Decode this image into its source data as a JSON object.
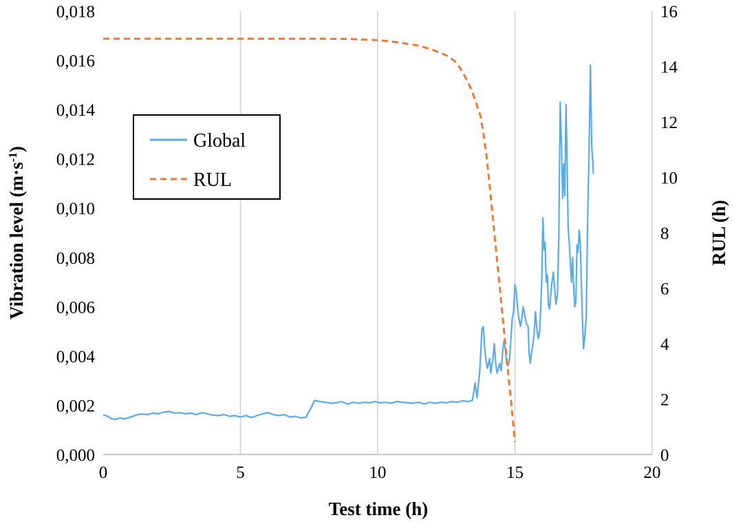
{
  "chart_data": {
    "type": "line",
    "xlabel": "Test time (h)",
    "ylabel": "Vibration level (m·s",
    "ylabel_sup": "-1",
    "ylabel_close": ")",
    "y2label": "RUL (h)",
    "xlim": [
      0,
      20
    ],
    "ylim": [
      0,
      0.018
    ],
    "y2lim": [
      0,
      16
    ],
    "x_ticks": [
      "0",
      "5",
      "10",
      "15",
      "20"
    ],
    "y_ticks": [
      "0,000",
      "0,002",
      "0,004",
      "0,006",
      "0,008",
      "0,010",
      "0,012",
      "0,014",
      "0,016",
      "0,018"
    ],
    "y2_ticks": [
      "0",
      "2",
      "4",
      "6",
      "8",
      "10",
      "12",
      "14",
      "16"
    ],
    "grid": "vertical",
    "legend_position": "upper-left",
    "series": [
      {
        "name": "Global",
        "axis": "left",
        "color": "#5aace6",
        "style": "solid",
        "points": [
          [
            0,
            0.0016
          ],
          [
            0.1,
            0.00158
          ],
          [
            0.2,
            0.00152
          ],
          [
            0.3,
            0.00145
          ],
          [
            0.45,
            0.00142
          ],
          [
            0.6,
            0.00148
          ],
          [
            0.8,
            0.00145
          ],
          [
            1.0,
            0.00152
          ],
          [
            1.2,
            0.0016
          ],
          [
            1.4,
            0.00165
          ],
          [
            1.6,
            0.00162
          ],
          [
            1.8,
            0.00168
          ],
          [
            2.0,
            0.00165
          ],
          [
            2.2,
            0.00172
          ],
          [
            2.4,
            0.00175
          ],
          [
            2.6,
            0.00168
          ],
          [
            2.8,
            0.0017
          ],
          [
            3.0,
            0.00165
          ],
          [
            3.2,
            0.00168
          ],
          [
            3.4,
            0.00162
          ],
          [
            3.6,
            0.0017
          ],
          [
            3.8,
            0.00165
          ],
          [
            4.0,
            0.0016
          ],
          [
            4.2,
            0.00158
          ],
          [
            4.4,
            0.00162
          ],
          [
            4.6,
            0.00155
          ],
          [
            4.8,
            0.00158
          ],
          [
            5.0,
            0.00152
          ],
          [
            5.2,
            0.00158
          ],
          [
            5.4,
            0.0015
          ],
          [
            5.6,
            0.00158
          ],
          [
            5.8,
            0.00165
          ],
          [
            6.0,
            0.0017
          ],
          [
            6.2,
            0.00162
          ],
          [
            6.4,
            0.00158
          ],
          [
            6.6,
            0.00162
          ],
          [
            6.8,
            0.00152
          ],
          [
            7.0,
            0.00155
          ],
          [
            7.2,
            0.00148
          ],
          [
            7.4,
            0.00152
          ],
          [
            7.45,
            0.00165
          ],
          [
            7.6,
            0.00195
          ],
          [
            7.7,
            0.0022
          ],
          [
            7.9,
            0.00215
          ],
          [
            8.1,
            0.00212
          ],
          [
            8.3,
            0.00208
          ],
          [
            8.5,
            0.0021
          ],
          [
            8.7,
            0.00215
          ],
          [
            8.9,
            0.00205
          ],
          [
            9.1,
            0.00212
          ],
          [
            9.3,
            0.00208
          ],
          [
            9.5,
            0.00212
          ],
          [
            9.7,
            0.0021
          ],
          [
            9.9,
            0.00215
          ],
          [
            10.1,
            0.0021
          ],
          [
            10.3,
            0.00212
          ],
          [
            10.5,
            0.00208
          ],
          [
            10.7,
            0.00215
          ],
          [
            10.9,
            0.00212
          ],
          [
            11.1,
            0.0021
          ],
          [
            11.3,
            0.00208
          ],
          [
            11.5,
            0.00212
          ],
          [
            11.7,
            0.00205
          ],
          [
            11.9,
            0.00212
          ],
          [
            12.1,
            0.00208
          ],
          [
            12.3,
            0.00212
          ],
          [
            12.5,
            0.0021
          ],
          [
            12.7,
            0.00215
          ],
          [
            12.9,
            0.00212
          ],
          [
            13.1,
            0.00218
          ],
          [
            13.3,
            0.00215
          ],
          [
            13.45,
            0.0022
          ],
          [
            13.55,
            0.0029
          ],
          [
            13.62,
            0.0023
          ],
          [
            13.72,
            0.0034
          ],
          [
            13.8,
            0.0051
          ],
          [
            13.85,
            0.0052
          ],
          [
            13.9,
            0.0043
          ],
          [
            13.95,
            0.0038
          ],
          [
            14.0,
            0.0035
          ],
          [
            14.08,
            0.0039
          ],
          [
            14.12,
            0.0033
          ],
          [
            14.2,
            0.0039
          ],
          [
            14.25,
            0.0045
          ],
          [
            14.3,
            0.0037
          ],
          [
            14.35,
            0.0033
          ],
          [
            14.4,
            0.0035
          ],
          [
            14.45,
            0.0037
          ],
          [
            14.5,
            0.0034
          ],
          [
            14.55,
            0.0041
          ],
          [
            14.6,
            0.0046
          ],
          [
            14.65,
            0.0043
          ],
          [
            14.7,
            0.0037
          ],
          [
            14.75,
            0.0036
          ],
          [
            14.8,
            0.0038
          ],
          [
            14.85,
            0.0046
          ],
          [
            14.9,
            0.0055
          ],
          [
            14.95,
            0.0058
          ],
          [
            15.0,
            0.0069
          ],
          [
            15.05,
            0.0066
          ],
          [
            15.1,
            0.0059
          ],
          [
            15.15,
            0.0055
          ],
          [
            15.2,
            0.0052
          ],
          [
            15.25,
            0.0055
          ],
          [
            15.3,
            0.006
          ],
          [
            15.35,
            0.0057
          ],
          [
            15.42,
            0.0053
          ],
          [
            15.48,
            0.0052
          ],
          [
            15.52,
            0.0041
          ],
          [
            15.56,
            0.0037
          ],
          [
            15.6,
            0.0041
          ],
          [
            15.65,
            0.0044
          ],
          [
            15.7,
            0.0049
          ],
          [
            15.75,
            0.0058
          ],
          [
            15.8,
            0.0051
          ],
          [
            15.85,
            0.0047
          ],
          [
            15.9,
            0.005
          ],
          [
            15.95,
            0.0062
          ],
          [
            15.98,
            0.0072
          ],
          [
            16.02,
            0.0096
          ],
          [
            16.06,
            0.0083
          ],
          [
            16.1,
            0.0086
          ],
          [
            16.14,
            0.007
          ],
          [
            16.18,
            0.0073
          ],
          [
            16.22,
            0.0061
          ],
          [
            16.26,
            0.0059
          ],
          [
            16.3,
            0.0064
          ],
          [
            16.35,
            0.007
          ],
          [
            16.4,
            0.0074
          ],
          [
            16.45,
            0.0067
          ],
          [
            16.5,
            0.0061
          ],
          [
            16.55,
            0.0065
          ],
          [
            16.6,
            0.0088
          ],
          [
            16.65,
            0.0143
          ],
          [
            16.7,
            0.0125
          ],
          [
            16.74,
            0.0104
          ],
          [
            16.78,
            0.0118
          ],
          [
            16.82,
            0.0105
          ],
          [
            16.86,
            0.0142
          ],
          [
            16.9,
            0.012
          ],
          [
            16.94,
            0.0092
          ],
          [
            16.98,
            0.0086
          ],
          [
            17.02,
            0.0078
          ],
          [
            17.06,
            0.007
          ],
          [
            17.1,
            0.008
          ],
          [
            17.14,
            0.0068
          ],
          [
            17.18,
            0.006
          ],
          [
            17.22,
            0.0062
          ],
          [
            17.26,
            0.0085
          ],
          [
            17.3,
            0.0082
          ],
          [
            17.34,
            0.0091
          ],
          [
            17.38,
            0.0086
          ],
          [
            17.42,
            0.007
          ],
          [
            17.46,
            0.0055
          ],
          [
            17.5,
            0.0043
          ],
          [
            17.55,
            0.0048
          ],
          [
            17.6,
            0.0056
          ],
          [
            17.65,
            0.0095
          ],
          [
            17.7,
            0.0122
          ],
          [
            17.75,
            0.0158
          ],
          [
            17.8,
            0.0125
          ],
          [
            17.84,
            0.0119
          ],
          [
            17.86,
            0.0114
          ]
        ]
      },
      {
        "name": "RUL",
        "axis": "right",
        "color": "#ea7a3b",
        "style": "dashed",
        "points": [
          [
            0,
            15.0
          ],
          [
            2,
            15.0
          ],
          [
            4,
            15.0
          ],
          [
            6,
            15.0
          ],
          [
            8,
            15.0
          ],
          [
            9,
            14.99
          ],
          [
            10,
            14.95
          ],
          [
            10.5,
            14.9
          ],
          [
            11,
            14.83
          ],
          [
            11.5,
            14.75
          ],
          [
            12,
            14.6
          ],
          [
            12.5,
            14.4
          ],
          [
            12.8,
            14.2
          ],
          [
            13.0,
            13.95
          ],
          [
            13.2,
            13.6
          ],
          [
            13.4,
            13.2
          ],
          [
            13.6,
            12.65
          ],
          [
            13.75,
            12.2
          ],
          [
            13.85,
            11.6
          ],
          [
            13.95,
            10.9
          ],
          [
            14.05,
            10.0
          ],
          [
            14.15,
            9.0
          ],
          [
            14.25,
            8.0
          ],
          [
            14.35,
            7.0
          ],
          [
            14.45,
            6.0
          ],
          [
            14.55,
            5.0
          ],
          [
            14.65,
            4.0
          ],
          [
            14.75,
            3.0
          ],
          [
            14.85,
            2.0
          ],
          [
            14.92,
            1.3
          ],
          [
            14.97,
            0.75
          ],
          [
            15.0,
            0.45
          ]
        ]
      }
    ]
  }
}
